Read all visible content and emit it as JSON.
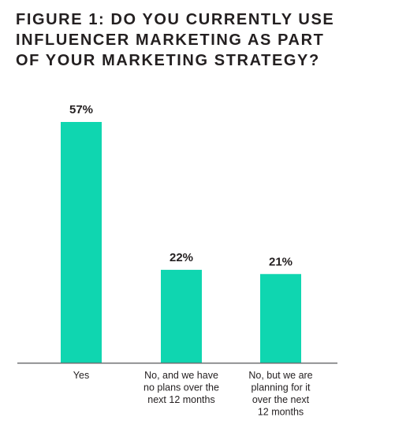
{
  "title_lines": [
    "FIGURE 1: DO YOU CURRENTLY USE",
    "INFLUENCER MARKETING AS PART",
    "OF YOUR MARKETING STRATEGY?"
  ],
  "colors": {
    "bar": "#0fd6b0",
    "text": "#231f20",
    "axis": "#6d6e71"
  },
  "chart_data": {
    "type": "bar",
    "title": "FIGURE 1: DO YOU CURRENTLY USE INFLUENCER MARKETING AS PART OF YOUR MARKETING STRATEGY?",
    "categories": [
      "Yes",
      "No, and we have no plans over the next 12 months",
      "No, but we are planning for it over the next 12 months"
    ],
    "category_lines": [
      [
        "Yes"
      ],
      [
        "No, and we have",
        "no plans over the",
        "next 12 months"
      ],
      [
        "No, but we are",
        "planning for it",
        "over the next",
        "12 months"
      ]
    ],
    "values": [
      57,
      22,
      21
    ],
    "value_labels": [
      "57%",
      "22%",
      "21%"
    ],
    "unit": "%",
    "ylim": [
      0,
      57
    ],
    "grid": false,
    "legend": "none"
  }
}
